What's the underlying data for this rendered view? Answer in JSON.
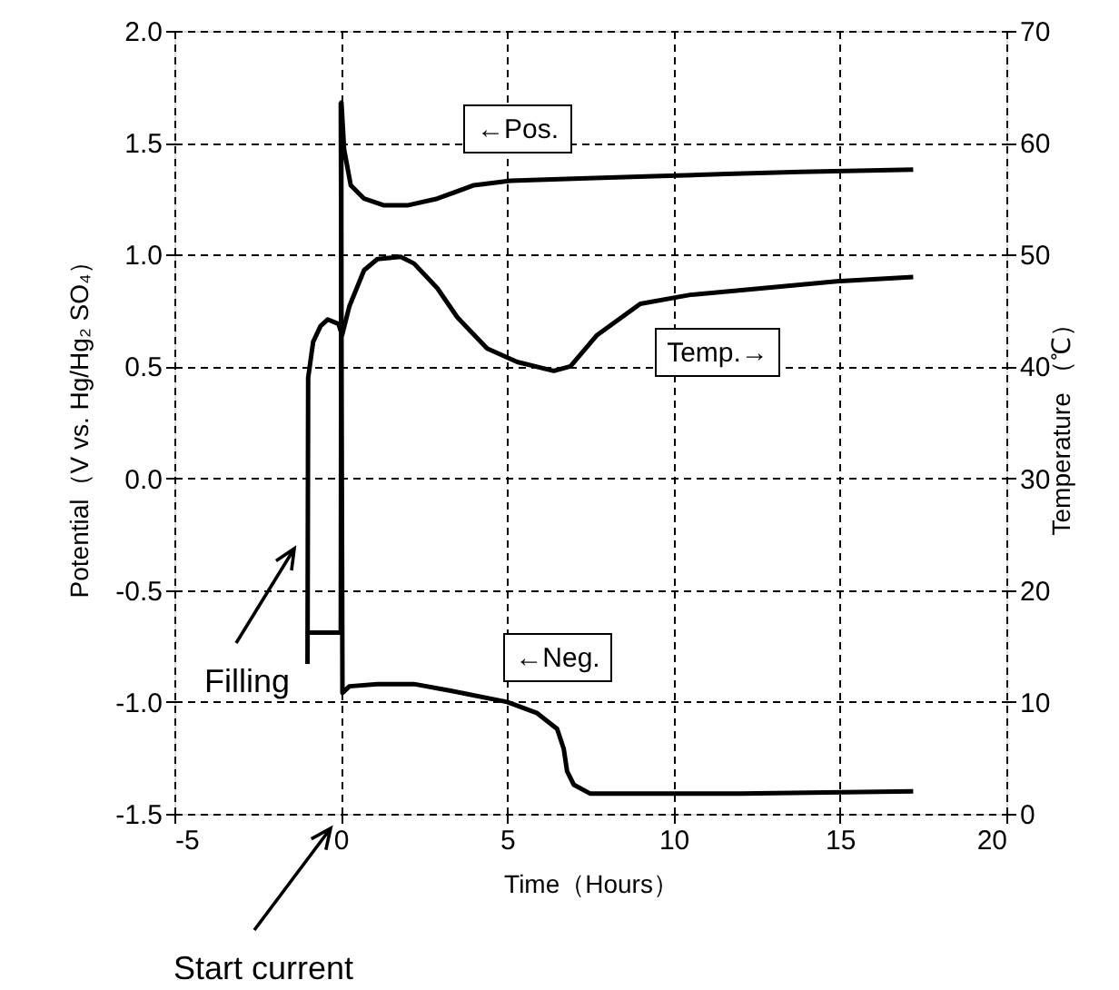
{
  "chart_data": {
    "type": "line",
    "xlabel": "Time（Hours）",
    "ylabel": "Potential（V vs. Hg/Hg₂ SO₄）",
    "y2label": "Temperature （℃）",
    "xlim": [
      -5,
      20
    ],
    "xticks": [
      -5,
      0,
      5,
      10,
      15,
      20
    ],
    "ylim": [
      -1.5,
      2.0
    ],
    "yticks": [
      {
        "value": -1.5,
        "label": "-1.5"
      },
      {
        "value": -1.0,
        "label": "-1.0"
      },
      -0.5,
      {
        "value": 0.0,
        "label": "0.0"
      },
      0.5,
      {
        "value": 1.0,
        "label": "1.0"
      },
      1.5,
      {
        "value": 2.0,
        "label": "2.0"
      }
    ],
    "y2lim": [
      0,
      70
    ],
    "y2ticks": [
      0,
      10,
      20,
      30,
      40,
      50,
      60,
      70
    ],
    "grid": true,
    "marker": "none",
    "line_style": "solid",
    "series": [
      {
        "name": "←Pos.",
        "color": "#000000",
        "x": [
          -1.05,
          0,
          0.02,
          0.1,
          0.3,
          0.7,
          1.3,
          2.0,
          2.9,
          4.0,
          5.1,
          7.2,
          9.4,
          11.6,
          13.8,
          17.2
        ],
        "values": [
          -0.69,
          -0.69,
          1.68,
          1.47,
          1.31,
          1.25,
          1.22,
          1.22,
          1.25,
          1.31,
          1.33,
          1.34,
          1.35,
          1.36,
          1.37,
          1.38
        ]
      },
      {
        "name": "Temp.→",
        "color": "#000000",
        "axis": "y2",
        "x": [
          -1.0,
          -0.98,
          -0.83,
          -0.61,
          -0.39,
          -0.07,
          0.04,
          0.26,
          0.7,
          1.1,
          1.8,
          2.2,
          2.9,
          3.5,
          4.4,
          5.3,
          6.4,
          6.9,
          7.7,
          9.0,
          10.5,
          12.7,
          14.9,
          17.2
        ],
        "values": [
          13.4,
          39,
          42.2,
          43.6,
          44.2,
          43.8,
          42.8,
          45.4,
          48.6,
          49.6,
          49.8,
          49.2,
          47,
          44.4,
          41.6,
          40.4,
          39.6,
          40,
          42.8,
          45.6,
          46.4,
          47,
          47.6,
          48
        ]
      },
      {
        "name": "←Neg.",
        "color": "#000000",
        "x": [
          0,
          0.05,
          0.26,
          1.1,
          2.2,
          3.3,
          5.0,
          5.9,
          6.5,
          6.7,
          6.8,
          7.0,
          7.5,
          9.4,
          12.0,
          17.2
        ],
        "values": [
          1.68,
          -0.96,
          -0.93,
          -0.92,
          -0.92,
          -0.95,
          -1.0,
          -1.05,
          -1.12,
          -1.21,
          -1.31,
          -1.37,
          -1.41,
          -1.41,
          -1.41,
          -1.4
        ]
      }
    ],
    "annotations": [
      "Filling",
      "Start current"
    ]
  }
}
